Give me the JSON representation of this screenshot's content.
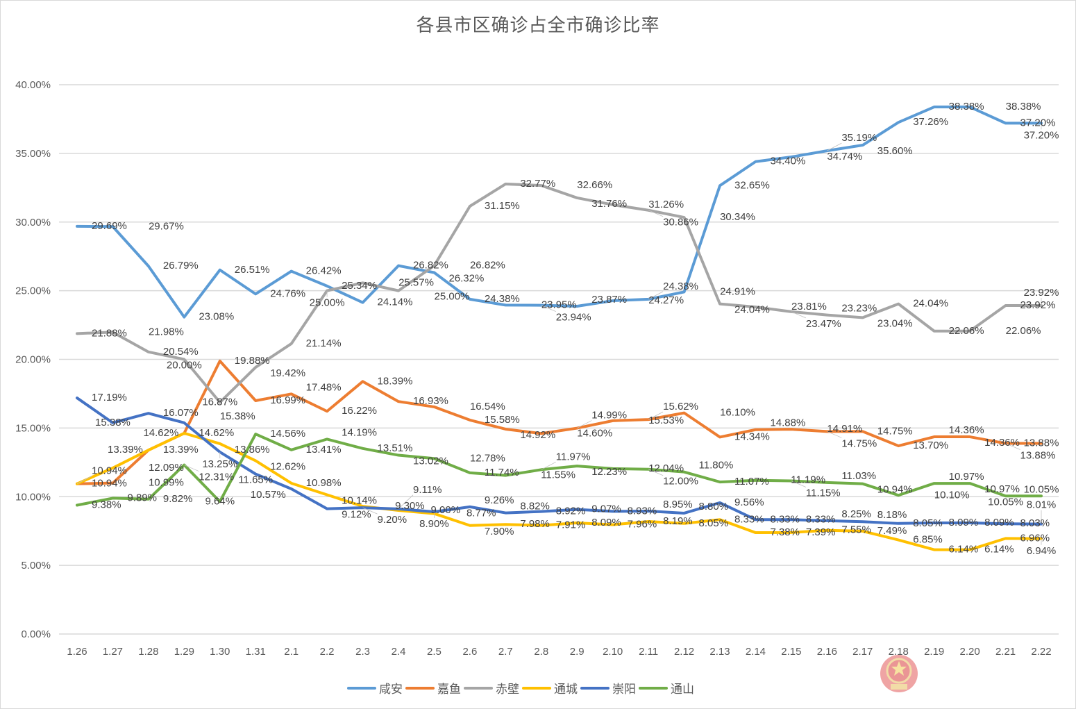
{
  "chart_data": {
    "type": "line",
    "title": "各县市区确诊占全市确诊比率",
    "xlabel": "",
    "ylabel": "",
    "ylim": [
      0,
      40
    ],
    "yticks": [
      "0.00%",
      "5.00%",
      "10.00%",
      "15.00%",
      "20.00%",
      "25.00%",
      "30.00%",
      "35.00%",
      "40.00%"
    ],
    "grid": true,
    "legend_position": "bottom",
    "categories": [
      "1.26",
      "1.27",
      "1.28",
      "1.29",
      "1.30",
      "1.31",
      "2.1",
      "2.2",
      "2.3",
      "2.4",
      "2.5",
      "2.6",
      "2.7",
      "2.8",
      "2.9",
      "2.10",
      "2.11",
      "2.12",
      "2.13",
      "2.14",
      "2.15",
      "2.16",
      "2.17",
      "2.18",
      "2.19",
      "2.20",
      "2.21",
      "2.22"
    ],
    "series": [
      {
        "name": "咸安",
        "color": "#5B9BD5",
        "values": [
          29.69,
          29.67,
          26.79,
          23.08,
          26.51,
          24.76,
          26.42,
          25.34,
          24.14,
          26.82,
          26.32,
          24.38,
          23.95,
          23.94,
          23.87,
          24.27,
          24.38,
          24.91,
          32.65,
          34.4,
          34.74,
          35.19,
          35.6,
          37.26,
          38.38,
          38.38,
          37.2,
          37.2
        ]
      },
      {
        "name": "嘉鱼",
        "color": "#ED7D31",
        "values": [
          10.94,
          10.99,
          13.39,
          14.62,
          19.88,
          16.99,
          17.48,
          16.22,
          18.39,
          16.93,
          16.54,
          15.58,
          14.92,
          14.6,
          14.99,
          15.53,
          15.62,
          16.1,
          14.34,
          14.88,
          14.91,
          14.75,
          14.75,
          13.7,
          14.36,
          14.36,
          13.88,
          13.88
        ]
      },
      {
        "name": "赤壁",
        "color": "#A5A5A5",
        "values": [
          21.88,
          21.98,
          20.54,
          20.0,
          16.87,
          19.42,
          21.14,
          25.0,
          25.57,
          25.0,
          26.82,
          31.15,
          32.77,
          32.66,
          31.76,
          31.26,
          30.86,
          30.34,
          24.04,
          23.81,
          23.47,
          23.23,
          23.04,
          24.04,
          22.06,
          22.06,
          23.92,
          23.92
        ]
      },
      {
        "name": "通城",
        "color": "#FFC000",
        "values": [
          10.94,
          12.09,
          13.39,
          14.62,
          13.86,
          12.62,
          10.98,
          10.14,
          9.3,
          9.0,
          8.77,
          7.9,
          7.98,
          7.91,
          8.09,
          7.96,
          8.19,
          8.05,
          8.33,
          7.38,
          7.39,
          7.55,
          7.49,
          6.85,
          6.14,
          6.14,
          6.96,
          6.94
        ]
      },
      {
        "name": "崇阳",
        "color": "#4472C4",
        "values": [
          17.19,
          15.38,
          16.07,
          15.38,
          13.25,
          11.65,
          10.57,
          9.12,
          9.2,
          9.11,
          8.9,
          9.26,
          8.82,
          8.92,
          9.07,
          8.93,
          8.95,
          8.8,
          9.56,
          8.33,
          8.33,
          8.25,
          8.18,
          8.05,
          8.09,
          8.09,
          8.03,
          8.01
        ]
      },
      {
        "name": "通山",
        "color": "#70AD47",
        "values": [
          9.38,
          9.89,
          9.82,
          12.31,
          9.64,
          14.56,
          13.41,
          14.19,
          13.51,
          13.02,
          12.78,
          11.74,
          11.55,
          11.97,
          12.23,
          12.04,
          12.0,
          11.8,
          11.07,
          11.19,
          11.15,
          11.03,
          10.94,
          10.1,
          10.97,
          10.97,
          10.05,
          10.05
        ]
      }
    ]
  }
}
